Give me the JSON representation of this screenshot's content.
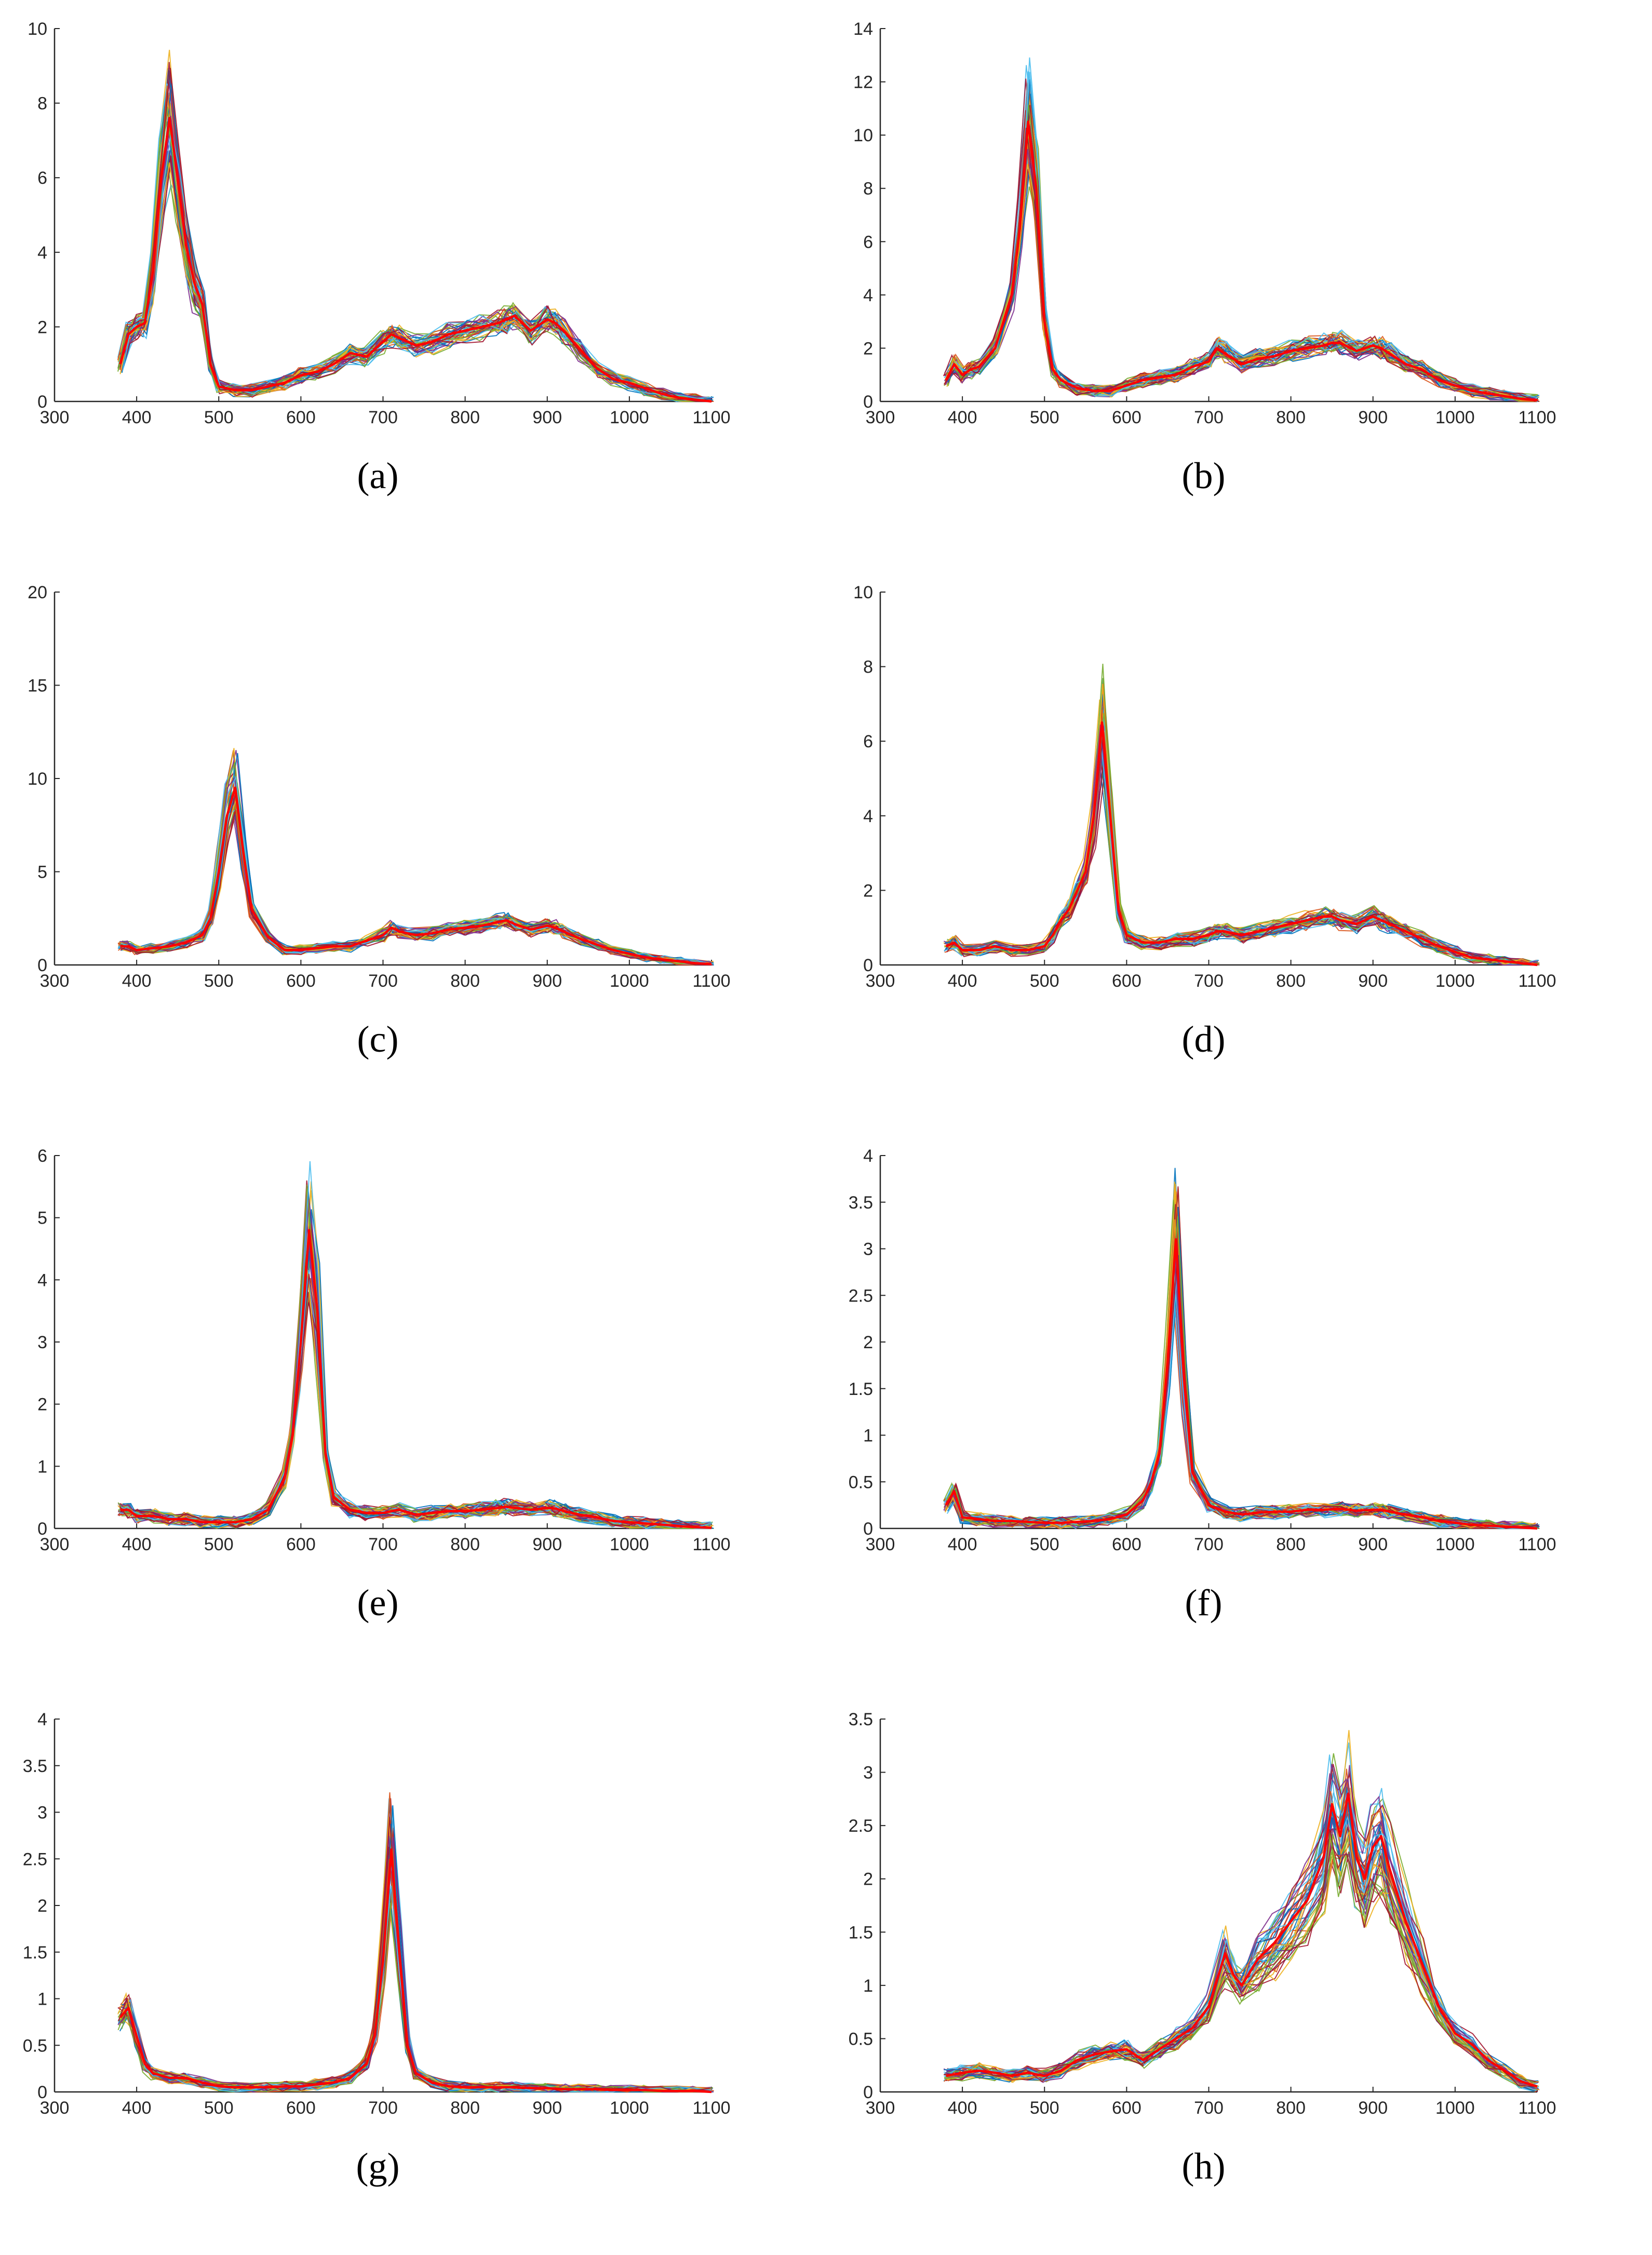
{
  "figure": {
    "series_colors": [
      "#0072BD",
      "#D95319",
      "#EDB120",
      "#7E2F8E",
      "#77AC30",
      "#4DBEEE",
      "#A2142F"
    ],
    "highlight_color": "#FF0000"
  },
  "chart_data": [
    {
      "type": "line",
      "caption": "(a)",
      "xlim": [
        300,
        1100
      ],
      "ylim": [
        0,
        10
      ],
      "xticks": [
        300,
        400,
        500,
        600,
        700,
        800,
        900,
        1000,
        1100
      ],
      "yticks": [
        0,
        2,
        4,
        6,
        8,
        10
      ],
      "grid": false,
      "series": [
        {
          "role": "mean",
          "x": [
            380,
            390,
            400,
            410,
            420,
            430,
            440,
            450,
            460,
            470,
            480,
            490,
            500,
            520,
            540,
            560,
            580,
            600,
            620,
            640,
            660,
            680,
            700,
            710,
            720,
            740,
            760,
            780,
            800,
            820,
            840,
            850,
            860,
            880,
            900,
            910,
            920,
            940,
            960,
            980,
            1000,
            1020,
            1040,
            1060,
            1080,
            1100
          ],
          "y": [
            1.0,
            1.8,
            2.0,
            2.1,
            3.5,
            6.0,
            7.6,
            6.0,
            4.2,
            3.2,
            2.6,
            1.0,
            0.4,
            0.3,
            0.3,
            0.4,
            0.5,
            0.7,
            0.8,
            1.0,
            1.3,
            1.2,
            1.6,
            1.8,
            1.7,
            1.5,
            1.6,
            1.8,
            1.9,
            2.0,
            2.1,
            2.2,
            2.3,
            1.9,
            2.2,
            2.1,
            1.9,
            1.4,
            0.9,
            0.6,
            0.5,
            0.35,
            0.2,
            0.1,
            0.05,
            0.0
          ]
        }
      ]
    },
    {
      "type": "line",
      "caption": "(b)",
      "xlim": [
        300,
        1100
      ],
      "ylim": [
        0,
        14
      ],
      "xticks": [
        300,
        400,
        500,
        600,
        700,
        800,
        900,
        1000,
        1100
      ],
      "yticks": [
        0,
        2,
        4,
        6,
        8,
        10,
        12,
        14
      ],
      "grid": false,
      "series": [
        {
          "role": "mean",
          "x": [
            380,
            390,
            400,
            410,
            420,
            440,
            460,
            470,
            480,
            490,
            500,
            510,
            520,
            540,
            560,
            580,
            600,
            620,
            640,
            660,
            680,
            700,
            710,
            720,
            740,
            760,
            780,
            800,
            820,
            840,
            850,
            860,
            880,
            900,
            910,
            920,
            940,
            960,
            980,
            1000,
            1020,
            1040,
            1060,
            1080,
            1100
          ],
          "y": [
            0.8,
            1.4,
            1.0,
            1.2,
            1.3,
            2.0,
            4.0,
            6.5,
            10.5,
            8.0,
            3.0,
            1.2,
            0.8,
            0.5,
            0.4,
            0.4,
            0.6,
            0.8,
            0.9,
            1.0,
            1.3,
            1.5,
            2.0,
            1.8,
            1.4,
            1.6,
            1.7,
            1.9,
            2.0,
            2.1,
            2.2,
            2.2,
            1.9,
            2.1,
            2.0,
            1.8,
            1.4,
            1.2,
            0.8,
            0.6,
            0.4,
            0.3,
            0.2,
            0.1,
            0.05
          ]
        }
      ]
    },
    {
      "type": "line",
      "caption": "(c)",
      "xlim": [
        300,
        1100
      ],
      "ylim": [
        0,
        20
      ],
      "xticks": [
        300,
        400,
        500,
        600,
        700,
        800,
        900,
        1000,
        1100
      ],
      "yticks": [
        0,
        5,
        10,
        15,
        20
      ],
      "grid": false,
      "series": [
        {
          "role": "mean",
          "x": [
            380,
            390,
            400,
            420,
            440,
            460,
            480,
            490,
            500,
            510,
            520,
            530,
            540,
            560,
            580,
            600,
            620,
            640,
            660,
            680,
            700,
            710,
            720,
            740,
            760,
            780,
            800,
            820,
            840,
            850,
            860,
            880,
            900,
            910,
            920,
            940,
            960,
            980,
            1000,
            1020,
            1040,
            1060,
            1080,
            1100
          ],
          "y": [
            1.0,
            1.0,
            0.8,
            0.9,
            1.0,
            1.2,
            1.6,
            2.5,
            5.0,
            8.0,
            9.5,
            6.0,
            3.0,
            1.5,
            0.8,
            0.8,
            0.9,
            1.0,
            1.0,
            1.3,
            1.6,
            2.0,
            1.8,
            1.6,
            1.7,
            1.9,
            2.0,
            2.1,
            2.3,
            2.4,
            2.2,
            1.9,
            2.1,
            2.0,
            1.8,
            1.4,
            1.1,
            0.8,
            0.6,
            0.4,
            0.3,
            0.2,
            0.1,
            0.05
          ]
        }
      ]
    },
    {
      "type": "line",
      "caption": "(d)",
      "xlim": [
        300,
        1100
      ],
      "ylim": [
        0,
        10
      ],
      "xticks": [
        300,
        400,
        500,
        600,
        700,
        800,
        900,
        1000,
        1100
      ],
      "yticks": [
        0,
        2,
        4,
        6,
        8,
        10
      ],
      "grid": false,
      "series": [
        {
          "role": "mean",
          "x": [
            380,
            390,
            400,
            420,
            440,
            460,
            480,
            500,
            510,
            520,
            530,
            540,
            550,
            560,
            570,
            580,
            590,
            600,
            620,
            640,
            660,
            680,
            700,
            710,
            720,
            740,
            760,
            780,
            800,
            820,
            840,
            850,
            860,
            880,
            900,
            910,
            920,
            940,
            960,
            980,
            1000,
            1020,
            1040,
            1060,
            1080,
            1100
          ],
          "y": [
            0.5,
            0.6,
            0.4,
            0.4,
            0.5,
            0.4,
            0.4,
            0.5,
            0.8,
            1.2,
            1.5,
            2.0,
            2.5,
            4.0,
            6.5,
            4.0,
            1.5,
            0.8,
            0.6,
            0.6,
            0.7,
            0.7,
            0.8,
            0.9,
            0.9,
            0.8,
            0.9,
            1.0,
            1.1,
            1.2,
            1.3,
            1.3,
            1.2,
            1.1,
            1.3,
            1.2,
            1.1,
            0.9,
            0.7,
            0.5,
            0.35,
            0.2,
            0.15,
            0.1,
            0.05,
            0.0
          ]
        }
      ]
    },
    {
      "type": "line",
      "caption": "(e)",
      "xlim": [
        300,
        1100
      ],
      "ylim": [
        0,
        6
      ],
      "xticks": [
        300,
        400,
        500,
        600,
        700,
        800,
        900,
        1000,
        1100
      ],
      "yticks": [
        0,
        1,
        2,
        3,
        4,
        5,
        6
      ],
      "grid": false,
      "series": [
        {
          "role": "mean",
          "x": [
            380,
            390,
            400,
            420,
            440,
            460,
            480,
            500,
            520,
            540,
            560,
            580,
            590,
            600,
            610,
            620,
            630,
            640,
            660,
            680,
            700,
            720,
            740,
            760,
            780,
            800,
            820,
            840,
            850,
            860,
            880,
            900,
            910,
            920,
            940,
            960,
            980,
            1000,
            1020,
            1040,
            1060,
            1080,
            1100
          ],
          "y": [
            0.3,
            0.3,
            0.2,
            0.2,
            0.15,
            0.15,
            0.1,
            0.1,
            0.1,
            0.15,
            0.3,
            0.8,
            1.5,
            3.0,
            4.8,
            3.5,
            1.2,
            0.5,
            0.3,
            0.25,
            0.25,
            0.3,
            0.22,
            0.25,
            0.28,
            0.28,
            0.3,
            0.33,
            0.35,
            0.33,
            0.3,
            0.33,
            0.32,
            0.28,
            0.22,
            0.18,
            0.12,
            0.1,
            0.08,
            0.06,
            0.04,
            0.02,
            0.01
          ]
        }
      ]
    },
    {
      "type": "line",
      "caption": "(f)",
      "xlim": [
        300,
        1100
      ],
      "ylim": [
        0,
        4
      ],
      "xticks": [
        300,
        400,
        500,
        600,
        700,
        800,
        900,
        1000,
        1100
      ],
      "yticks": [
        0,
        0.5,
        1,
        1.5,
        2,
        2.5,
        3,
        3.5,
        4
      ],
      "grid": false,
      "series": [
        {
          "role": "mean",
          "x": [
            380,
            390,
            400,
            420,
            440,
            460,
            480,
            500,
            520,
            540,
            560,
            580,
            600,
            620,
            630,
            640,
            650,
            660,
            670,
            680,
            700,
            720,
            740,
            760,
            780,
            800,
            820,
            840,
            860,
            880,
            900,
            910,
            920,
            940,
            960,
            980,
            1000,
            1020,
            1040,
            1060,
            1080,
            1100
          ],
          "y": [
            0.25,
            0.4,
            0.12,
            0.1,
            0.08,
            0.08,
            0.07,
            0.06,
            0.06,
            0.07,
            0.08,
            0.1,
            0.15,
            0.3,
            0.5,
            0.8,
            1.8,
            3.1,
            1.6,
            0.6,
            0.25,
            0.18,
            0.15,
            0.17,
            0.18,
            0.18,
            0.2,
            0.2,
            0.21,
            0.19,
            0.2,
            0.2,
            0.18,
            0.15,
            0.12,
            0.08,
            0.06,
            0.04,
            0.03,
            0.02,
            0.01,
            0.0
          ]
        }
      ]
    },
    {
      "type": "line",
      "caption": "(g)",
      "xlim": [
        300,
        1100
      ],
      "ylim": [
        0,
        4
      ],
      "xticks": [
        300,
        400,
        500,
        600,
        700,
        800,
        900,
        1000,
        1100
      ],
      "yticks": [
        0,
        0.5,
        1,
        1.5,
        2,
        2.5,
        3,
        3.5,
        4
      ],
      "grid": false,
      "series": [
        {
          "role": "mean",
          "x": [
            380,
            390,
            400,
            410,
            420,
            440,
            460,
            480,
            500,
            520,
            540,
            560,
            580,
            600,
            620,
            640,
            660,
            680,
            690,
            700,
            710,
            720,
            730,
            740,
            760,
            780,
            800,
            820,
            840,
            860,
            880,
            900,
            920,
            940,
            960,
            980,
            1000,
            1020,
            1040,
            1060,
            1080,
            1100
          ],
          "y": [
            0.8,
            0.9,
            0.6,
            0.3,
            0.2,
            0.15,
            0.15,
            0.1,
            0.06,
            0.05,
            0.05,
            0.05,
            0.06,
            0.06,
            0.08,
            0.1,
            0.15,
            0.3,
            0.6,
            1.4,
            2.6,
            1.5,
            0.5,
            0.2,
            0.1,
            0.06,
            0.05,
            0.05,
            0.05,
            0.05,
            0.04,
            0.04,
            0.03,
            0.03,
            0.03,
            0.02,
            0.02,
            0.02,
            0.01,
            0.01,
            0.01,
            0.0
          ]
        }
      ]
    },
    {
      "type": "line",
      "caption": "(h)",
      "xlim": [
        300,
        1100
      ],
      "ylim": [
        0,
        3.5
      ],
      "xticks": [
        300,
        400,
        500,
        600,
        700,
        800,
        900,
        1000,
        1100
      ],
      "yticks": [
        0,
        0.5,
        1,
        1.5,
        2,
        2.5,
        3,
        3.5
      ],
      "grid": false,
      "series": [
        {
          "role": "mean",
          "x": [
            380,
            400,
            420,
            440,
            460,
            480,
            500,
            520,
            540,
            560,
            580,
            600,
            620,
            640,
            660,
            680,
            700,
            720,
            730,
            740,
            760,
            780,
            800,
            820,
            840,
            850,
            860,
            870,
            880,
            890,
            900,
            910,
            920,
            940,
            960,
            980,
            1000,
            1020,
            1040,
            1060,
            1080,
            1100
          ],
          "y": [
            0.15,
            0.18,
            0.2,
            0.18,
            0.15,
            0.18,
            0.15,
            0.2,
            0.3,
            0.35,
            0.38,
            0.4,
            0.3,
            0.4,
            0.5,
            0.6,
            0.8,
            1.3,
            1.1,
            1.0,
            1.25,
            1.4,
            1.6,
            1.8,
            2.2,
            2.7,
            2.4,
            2.8,
            2.2,
            2.0,
            2.3,
            2.4,
            2.1,
            1.6,
            1.2,
            0.8,
            0.55,
            0.45,
            0.3,
            0.2,
            0.1,
            0.05
          ]
        }
      ]
    }
  ]
}
